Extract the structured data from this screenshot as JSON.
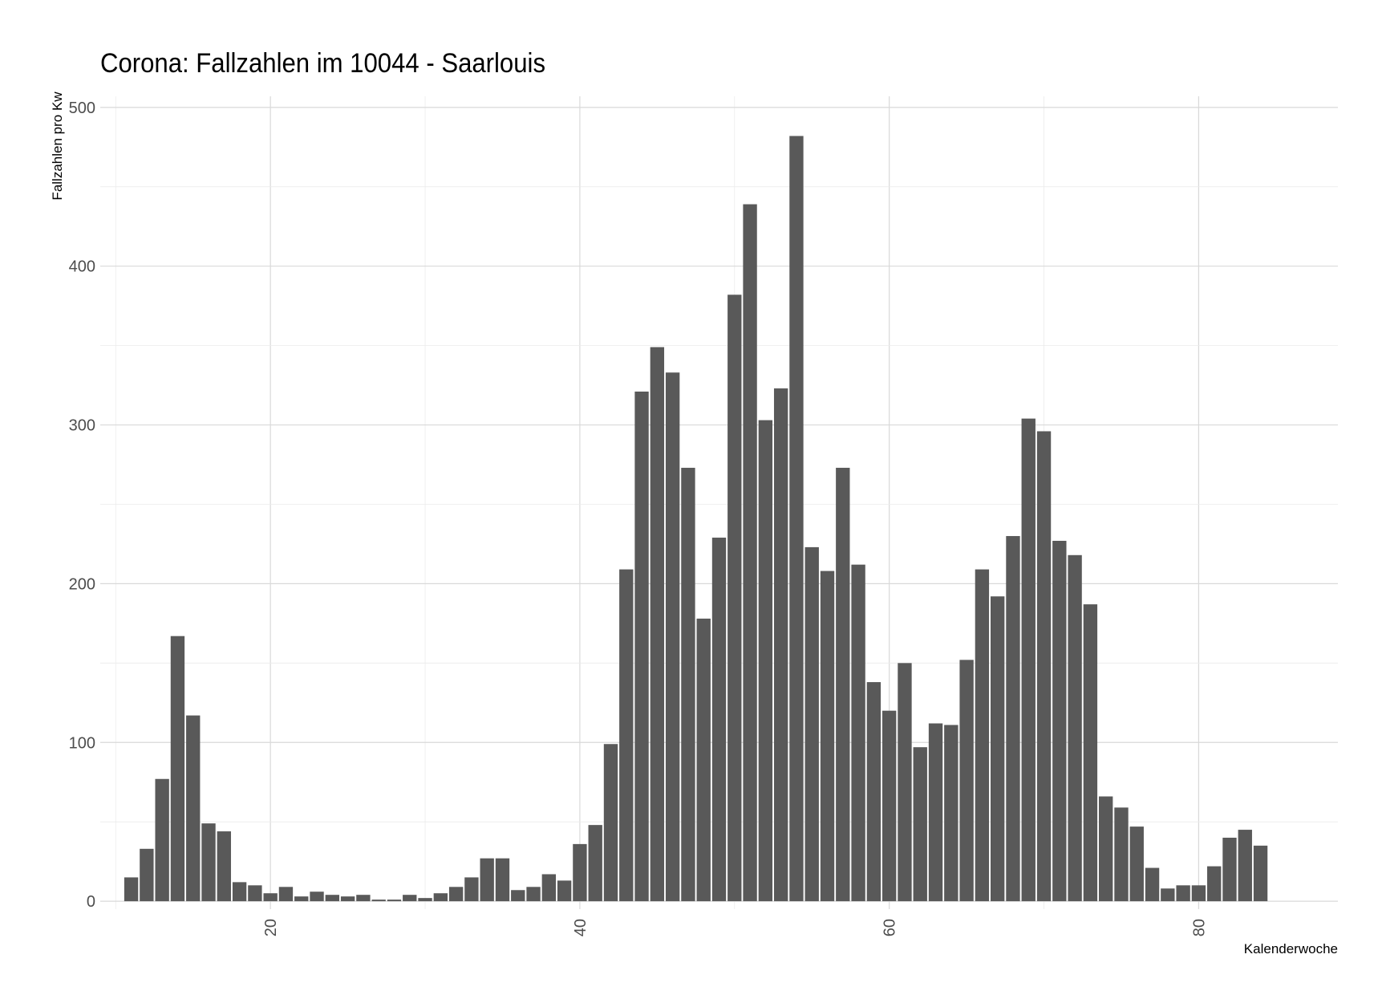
{
  "chart_data": {
    "type": "bar",
    "title": "Corona: Fallzahlen im 10044 - Saarlouis",
    "xlabel": "Kalenderwoche",
    "ylabel": "Fallzahlen pro Kw",
    "xlim": [
      9,
      89
    ],
    "ylim": [
      -5,
      507
    ],
    "x_ticks": [
      20,
      40,
      60,
      80
    ],
    "y_ticks": [
      0,
      100,
      200,
      300,
      400,
      500
    ],
    "grid": true,
    "legend": "none",
    "bar_color": "#595959",
    "x": [
      11,
      12,
      13,
      14,
      15,
      16,
      17,
      18,
      19,
      20,
      21,
      22,
      23,
      24,
      25,
      26,
      27,
      28,
      29,
      30,
      31,
      32,
      33,
      34,
      35,
      36,
      37,
      38,
      39,
      40,
      41,
      42,
      43,
      44,
      45,
      46,
      47,
      48,
      49,
      50,
      51,
      52,
      53,
      54,
      55,
      56,
      57,
      58,
      59,
      60,
      61,
      62,
      63,
      64,
      65,
      66,
      67,
      68,
      69,
      70,
      71,
      72,
      73,
      74,
      75,
      76,
      77,
      78,
      79,
      80,
      81,
      82,
      83,
      84
    ],
    "values": [
      15,
      33,
      77,
      167,
      117,
      49,
      44,
      12,
      10,
      5,
      9,
      3,
      6,
      4,
      3,
      4,
      1,
      1,
      4,
      2,
      5,
      9,
      15,
      27,
      27,
      7,
      9,
      17,
      13,
      36,
      48,
      99,
      209,
      321,
      349,
      333,
      273,
      178,
      229,
      382,
      439,
      303,
      323,
      482,
      223,
      208,
      273,
      212,
      138,
      120,
      150,
      97,
      112,
      111,
      152,
      209,
      192,
      230,
      304,
      296,
      227,
      218,
      187,
      66,
      59,
      47,
      21,
      8,
      10,
      10,
      22,
      40,
      45,
      35
    ]
  }
}
